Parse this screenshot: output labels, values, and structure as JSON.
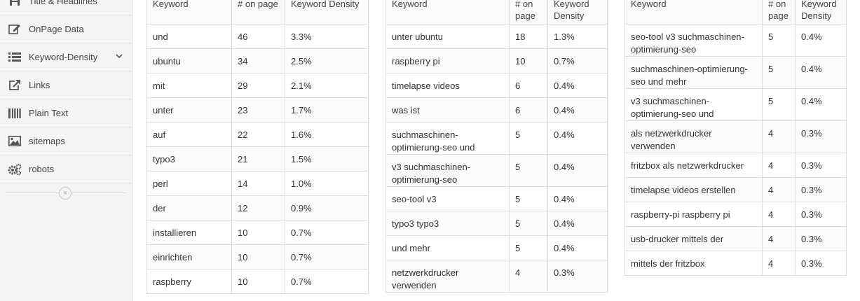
{
  "sidebar": {
    "items": [
      {
        "label": "Title & Headlines",
        "icon": "heading-icon"
      },
      {
        "label": "OnPage Data",
        "icon": "edit-icon"
      },
      {
        "label": "Keyword-Density",
        "icon": "list-icon"
      },
      {
        "label": "Links",
        "icon": "external-link-icon"
      },
      {
        "label": "Plain Text",
        "icon": "barcode-icon"
      },
      {
        "label": "sitemaps",
        "icon": "image-icon"
      },
      {
        "label": "robots",
        "icon": "gears-icon"
      }
    ],
    "collapse_glyph": "«"
  },
  "table_headers": {
    "keyword": "Keyword",
    "on_page": "# on page",
    "density": "Keyword Density"
  },
  "tables": [
    {
      "rows": [
        {
          "keyword": "und",
          "count": "46",
          "density": "3.3%"
        },
        {
          "keyword": "ubuntu",
          "count": "34",
          "density": "2.5%"
        },
        {
          "keyword": "mit",
          "count": "29",
          "density": "2.1%"
        },
        {
          "keyword": "unter",
          "count": "23",
          "density": "1.7%"
        },
        {
          "keyword": "auf",
          "count": "22",
          "density": "1.6%"
        },
        {
          "keyword": "typo3",
          "count": "21",
          "density": "1.5%"
        },
        {
          "keyword": "perl",
          "count": "14",
          "density": "1.0%"
        },
        {
          "keyword": "der",
          "count": "12",
          "density": "0.9%"
        },
        {
          "keyword": "installieren",
          "count": "10",
          "density": "0.7%"
        },
        {
          "keyword": "einrichten",
          "count": "10",
          "density": "0.7%"
        },
        {
          "keyword": "raspberry",
          "count": "10",
          "density": "0.7%"
        }
      ]
    },
    {
      "rows": [
        {
          "keyword": "unter ubuntu",
          "count": "18",
          "density": "1.3%"
        },
        {
          "keyword": "raspberry pi",
          "count": "10",
          "density": "0.7%"
        },
        {
          "keyword": "timelapse videos",
          "count": "6",
          "density": "0.4%"
        },
        {
          "keyword": "was ist",
          "count": "6",
          "density": "0.4%"
        },
        {
          "keyword": "suchmaschinen-optimierung-seo und",
          "count": "5",
          "density": "0.4%"
        },
        {
          "keyword": "v3 suchmaschinen-optimierung-seo",
          "count": "5",
          "density": "0.4%"
        },
        {
          "keyword": "seo-tool v3",
          "count": "5",
          "density": "0.4%"
        },
        {
          "keyword": "typo3 typo3",
          "count": "5",
          "density": "0.4%"
        },
        {
          "keyword": "und mehr",
          "count": "5",
          "density": "0.4%"
        },
        {
          "keyword": "netzwerkdrucker verwenden",
          "count": "4",
          "density": "0.3%"
        }
      ]
    },
    {
      "rows": [
        {
          "keyword": "seo-tool v3 suchmaschinen-optimierung-seo",
          "count": "5",
          "density": "0.4%"
        },
        {
          "keyword": "suchmaschinen-optimierung-seo und mehr",
          "count": "5",
          "density": "0.4%"
        },
        {
          "keyword": "v3 suchmaschinen-optimierung-seo und",
          "count": "5",
          "density": "0.4%"
        },
        {
          "keyword": "als netzwerkdrucker verwenden",
          "count": "4",
          "density": "0.3%"
        },
        {
          "keyword": "fritzbox als netzwerkdrucker",
          "count": "4",
          "density": "0.3%"
        },
        {
          "keyword": "timelapse videos erstellen",
          "count": "4",
          "density": "0.3%"
        },
        {
          "keyword": "raspberry-pi raspberry pi",
          "count": "4",
          "density": "0.3%"
        },
        {
          "keyword": "usb-drucker mittels der",
          "count": "4",
          "density": "0.3%"
        },
        {
          "keyword": "mittels der fritzbox",
          "count": "4",
          "density": "0.3%"
        }
      ]
    }
  ]
}
